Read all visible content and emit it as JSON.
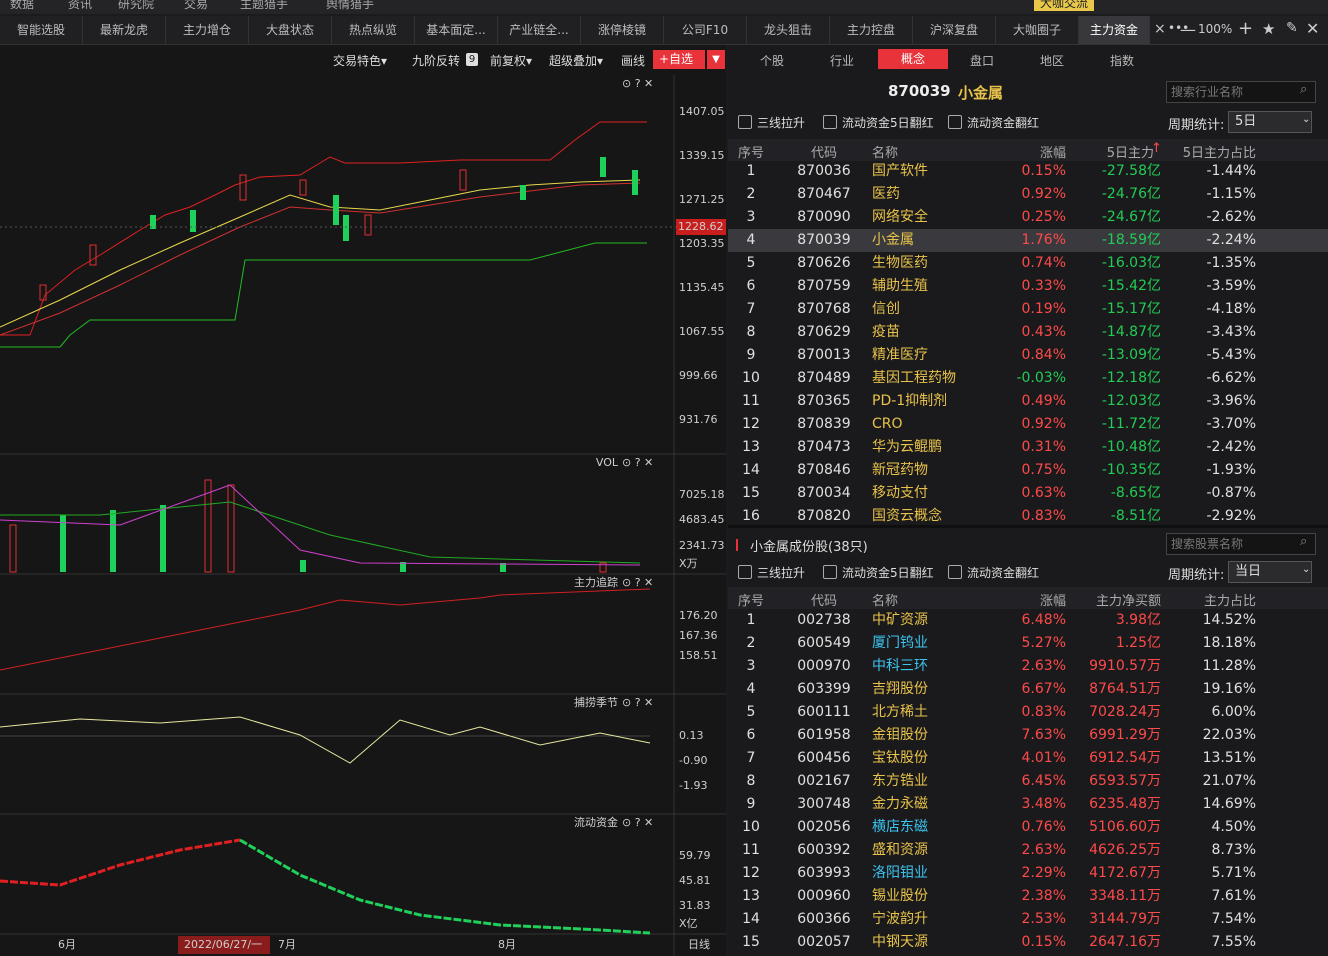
{
  "top_menu": [
    "数据",
    "资讯",
    "研究院",
    "交易",
    "主题猎手",
    "舆情猎手"
  ],
  "top_right": "大咖交流",
  "tabs": [
    "智能选股",
    "最新龙虎",
    "主力增仓",
    "大盘状态",
    "热点纵览",
    "基本面定...",
    "产业链全...",
    "涨停棱镜",
    "公司F10",
    "龙头狙击",
    "主力控盘",
    "沪深复盘",
    "大咖圈子",
    "主力资金"
  ],
  "active_tab": 13,
  "zoom": "100%",
  "toolbar": [
    "交易特色▾",
    "九阶反转",
    "前复权▾",
    "超级叠加▾",
    "画线"
  ],
  "badge": "9",
  "add_button": "+自选",
  "price_ticks": [
    "1407.05",
    "1339.15",
    "1271.25",
    "1203.35",
    "1135.45",
    "1067.55",
    "999.66",
    "931.76"
  ],
  "current_price": "1228.62",
  "panels": [
    {
      "title": "VOL",
      "ticks": [
        "7025.18",
        "4683.45",
        "2341.73"
      ],
      "unit": "X万"
    },
    {
      "title": "主力追踪",
      "ticks": [
        "176.20",
        "167.36",
        "158.51"
      ]
    },
    {
      "title": "捕捞季节",
      "ticks": [
        "0.13",
        "-0.90",
        "-1.93"
      ]
    },
    {
      "title": "流动资金",
      "ticks": [
        "59.79",
        "45.81",
        "31.83"
      ],
      "unit": "X亿"
    }
  ],
  "x_axis": {
    "months": [
      "6月",
      "7月",
      "8月"
    ],
    "cursor": "2022/06/27/一",
    "period": "日线"
  },
  "sub_tabs": [
    "个股",
    "行业",
    "概念",
    "盘口",
    "地区",
    "指数"
  ],
  "active_sub_tab": 2,
  "concept": {
    "code": "870039",
    "name": "小金属"
  },
  "search1": "搜索行业名称",
  "filters": [
    "三线拉升",
    "流动资金5日翻红",
    "流动资金翻红"
  ],
  "period_label": "周期统计:",
  "period1": "5日",
  "headers1": [
    "序号",
    "代码",
    "名称",
    "涨幅",
    "5日主力",
    "5日主力占比"
  ],
  "sort_arrow": "↑",
  "selected_row": 3,
  "rows1": [
    [
      "1",
      "870036",
      "国产软件",
      "0.15%",
      "-27.58亿",
      "-1.44%"
    ],
    [
      "2",
      "870467",
      "医药",
      "0.92%",
      "-24.76亿",
      "-1.15%"
    ],
    [
      "3",
      "870090",
      "网络安全",
      "0.25%",
      "-24.67亿",
      "-2.62%"
    ],
    [
      "4",
      "870039",
      "小金属",
      "1.76%",
      "-18.59亿",
      "-2.24%"
    ],
    [
      "5",
      "870626",
      "生物医药",
      "0.74%",
      "-16.03亿",
      "-1.35%"
    ],
    [
      "6",
      "870759",
      "辅助生殖",
      "0.33%",
      "-15.42亿",
      "-3.59%"
    ],
    [
      "7",
      "870768",
      "信创",
      "0.19%",
      "-15.17亿",
      "-4.18%"
    ],
    [
      "8",
      "870629",
      "疫苗",
      "0.43%",
      "-14.87亿",
      "-3.43%"
    ],
    [
      "9",
      "870013",
      "精准医疗",
      "0.84%",
      "-13.09亿",
      "-5.43%"
    ],
    [
      "10",
      "870489",
      "基因工程药物",
      "-0.03%",
      "-12.18亿",
      "-6.62%"
    ],
    [
      "11",
      "870365",
      "PD-1抑制剂",
      "0.49%",
      "-12.03亿",
      "-3.96%"
    ],
    [
      "12",
      "870839",
      "CRO",
      "0.92%",
      "-11.72亿",
      "-3.70%"
    ],
    [
      "13",
      "870473",
      "华为云鲲鹏",
      "0.31%",
      "-10.48亿",
      "-2.42%"
    ],
    [
      "14",
      "870846",
      "新冠药物",
      "0.75%",
      "-10.35亿",
      "-1.93%"
    ],
    [
      "15",
      "870034",
      "移动支付",
      "0.63%",
      "-8.65亿",
      "-0.87%"
    ],
    [
      "16",
      "870820",
      "国资云概念",
      "0.83%",
      "-8.51亿",
      "-2.92%"
    ]
  ],
  "components_title": "小金属成份股(38只)",
  "search2": "搜索股票名称",
  "period2": "当日",
  "headers2": [
    "序号",
    "代码",
    "名称",
    "涨幅",
    "主力净买额",
    "主力占比"
  ],
  "rows2": [
    [
      "1",
      "002738",
      "中矿资源",
      "6.48%",
      "3.98亿",
      "14.52%"
    ],
    [
      "2",
      "600549",
      "厦门钨业",
      "5.27%",
      "1.25亿",
      "18.18%"
    ],
    [
      "3",
      "000970",
      "中科三环",
      "2.63%",
      "9910.57万",
      "11.28%"
    ],
    [
      "4",
      "603399",
      "吉翔股份",
      "6.67%",
      "8764.51万",
      "19.16%"
    ],
    [
      "5",
      "600111",
      "北方稀土",
      "0.83%",
      "7028.24万",
      "6.00%"
    ],
    [
      "6",
      "601958",
      "金钼股份",
      "7.63%",
      "6991.29万",
      "22.03%"
    ],
    [
      "7",
      "600456",
      "宝钛股份",
      "4.01%",
      "6912.54万",
      "13.51%"
    ],
    [
      "8",
      "002167",
      "东方锆业",
      "6.45%",
      "6593.57万",
      "21.07%"
    ],
    [
      "9",
      "300748",
      "金力永磁",
      "3.48%",
      "6235.48万",
      "14.69%"
    ],
    [
      "10",
      "002056",
      "横店东磁",
      "0.76%",
      "5106.60万",
      "4.50%"
    ],
    [
      "11",
      "600392",
      "盛和资源",
      "2.63%",
      "4626.25万",
      "8.73%"
    ],
    [
      "12",
      "603993",
      "洛阳钼业",
      "2.29%",
      "4172.67万",
      "5.71%"
    ],
    [
      "13",
      "000960",
      "锡业股份",
      "2.38%",
      "3348.11万",
      "7.61%"
    ],
    [
      "14",
      "600366",
      "宁波韵升",
      "2.53%",
      "3144.79万",
      "7.54%"
    ],
    [
      "15",
      "002057",
      "中钢天源",
      "0.15%",
      "2647.16万",
      "7.55%"
    ]
  ],
  "name_color": "#e8c24a",
  "highlight_color": "#3cc4f0",
  "highlight_rows2": [
    1,
    2,
    9,
    11
  ],
  "up_color": "#ff4a4a",
  "down_color": "#22cc55"
}
